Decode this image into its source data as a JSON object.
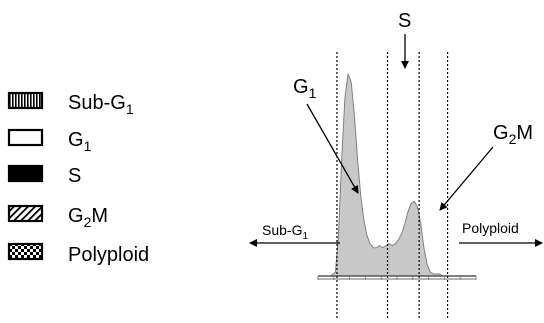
{
  "legend": [
    {
      "label": "Sub-G",
      "sub": "1",
      "pattern": "vertical-lines"
    },
    {
      "label": "G",
      "sub": "1",
      "pattern": "open"
    },
    {
      "label": "S",
      "sub": "",
      "pattern": "solid"
    },
    {
      "label": "G",
      "sub": "2",
      "post": "M",
      "pattern": "diagonal-hatch"
    },
    {
      "label": "Polyploid",
      "sub": "",
      "pattern": "checker"
    }
  ],
  "chart_data": {
    "type": "area",
    "description_of_axes": "",
    "xlabel": "",
    "ylabel": "",
    "xlim": [
      0,
      100
    ],
    "ylim": [
      0,
      100
    ],
    "x": [
      0,
      5,
      8,
      11,
      13,
      15,
      17,
      19,
      21,
      23,
      25,
      27,
      29,
      31,
      33,
      35,
      37,
      39,
      41,
      43,
      45,
      47,
      49,
      51,
      53,
      55,
      57,
      59,
      61,
      63,
      65,
      67,
      69,
      71,
      73,
      75,
      77,
      79,
      81,
      84,
      88,
      92,
      100
    ],
    "y": [
      0,
      0,
      0,
      2,
      20,
      58,
      88,
      100,
      96,
      80,
      58,
      40,
      28,
      20,
      16,
      14,
      14,
      15,
      14,
      15,
      16,
      15,
      16,
      18,
      21,
      26,
      32,
      36,
      37,
      34,
      26,
      14,
      6,
      2,
      1,
      1,
      1,
      0,
      0,
      0,
      0,
      0,
      0
    ],
    "fill": "#c8c8c8",
    "stroke": "#808080",
    "region_boundaries_x": [
      12,
      44,
      64,
      82
    ],
    "region_labels": {
      "sub_g1": {
        "label": "Sub-G",
        "sub": "1"
      },
      "polyploid": {
        "label": "Polyploid"
      }
    },
    "annotations": [
      {
        "label": "G",
        "sub": "1",
        "post": "",
        "target": "g1-peak"
      },
      {
        "label": "S",
        "sub": "",
        "post": "",
        "target": "s-phase"
      },
      {
        "label": "G",
        "sub": "2",
        "post": "M",
        "target": "g2m-peak"
      }
    ]
  }
}
